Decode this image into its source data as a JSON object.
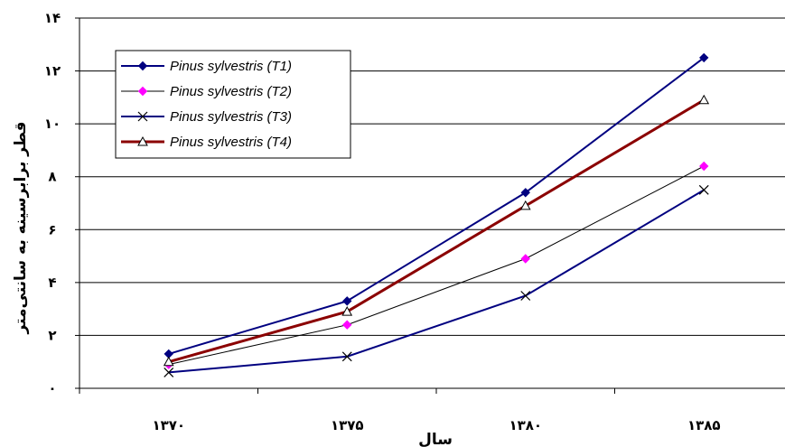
{
  "chart_data": {
    "type": "line",
    "title": "",
    "xlabel": "سال",
    "ylabel": "قطر برابرسینه به سانتی‌متر",
    "categories": [
      "۱۳۷۰",
      "۱۳۷۵",
      "۱۳۸۰",
      "۱۳۸۵"
    ],
    "ylim": [
      0,
      14
    ],
    "yticks": [
      0,
      2,
      4,
      6,
      8,
      10,
      12,
      14
    ],
    "ytick_labels": [
      "۰",
      "۲",
      "۴",
      "۶",
      "۸",
      "۱۰",
      "۱۲",
      "۱۴"
    ],
    "grid": "horizontal",
    "legend_position": "top-left",
    "series": [
      {
        "name": "Pinus sylvestris (T1)",
        "values": [
          1.3,
          3.3,
          7.4,
          12.5
        ],
        "color": "#000080",
        "marker": "diamond",
        "line_width": 2
      },
      {
        "name": "Pinus sylvestris (T2)",
        "values": [
          0.9,
          2.4,
          4.9,
          8.4
        ],
        "color": "#000000",
        "marker_color": "#ff00ff",
        "marker": "diamond",
        "line_width": 1
      },
      {
        "name": "Pinus sylvestris (T3)",
        "values": [
          0.6,
          1.2,
          3.5,
          7.5
        ],
        "color": "#000080",
        "marker_color": "#000000",
        "marker": "x",
        "line_width": 2
      },
      {
        "name": "Pinus sylvestris (T4)",
        "values": [
          1.0,
          2.9,
          6.9,
          10.9
        ],
        "color": "#8b0000",
        "marker_color": "#000000",
        "marker": "triangle",
        "line_width": 3
      }
    ]
  }
}
